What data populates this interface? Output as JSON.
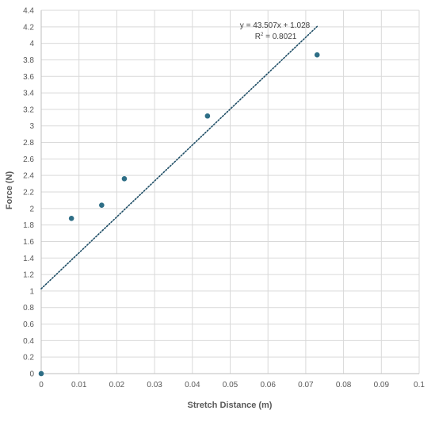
{
  "chart_data": {
    "type": "scatter",
    "title": "",
    "xlabel": "Stretch Distance (m)",
    "ylabel": "Force (N)",
    "xlim": [
      0,
      0.1
    ],
    "ylim": [
      0,
      4.4
    ],
    "x_major_step": 0.01,
    "y_major_step": 0.2,
    "x_tick_labels": [
      "0",
      "0.01",
      "0.02",
      "0.03",
      "0.04",
      "0.05",
      "0.06",
      "0.07",
      "0.08",
      "0.09",
      "0.1"
    ],
    "y_tick_labels": [
      "0",
      "0.2",
      "0.4",
      "0.6",
      "0.8",
      "1",
      "1.2",
      "1.4",
      "1.6",
      "1.8",
      "2",
      "2.2",
      "2.4",
      "2.6",
      "2.8",
      "3",
      "3.2",
      "3.4",
      "3.6",
      "3.8",
      "4",
      "4.2",
      "4.4"
    ],
    "grid": true,
    "legend": "none",
    "series": [
      {
        "points": [
          {
            "x": 0,
            "y": 0
          },
          {
            "x": 0.008,
            "y": 1.88
          },
          {
            "x": 0.016,
            "y": 2.04
          },
          {
            "x": 0.022,
            "y": 2.36
          },
          {
            "x": 0.044,
            "y": 3.12
          },
          {
            "x": 0.073,
            "y": 3.86
          }
        ],
        "color": "#2e6e86"
      }
    ],
    "trendline": {
      "type": "linear",
      "slope": 43.507,
      "intercept": 1.028,
      "x_range": [
        0,
        0.073
      ],
      "style": "dotted",
      "color": "#1f4e66",
      "equation_label": "y = 43.507x + 1.028",
      "r2_prefix": "R",
      "r2_exponent": "2",
      "r2_value": " = 0.8021"
    },
    "colors": {
      "grid": "#d9d9d9",
      "axis": "#bfbfbf",
      "text": "#595959"
    }
  }
}
